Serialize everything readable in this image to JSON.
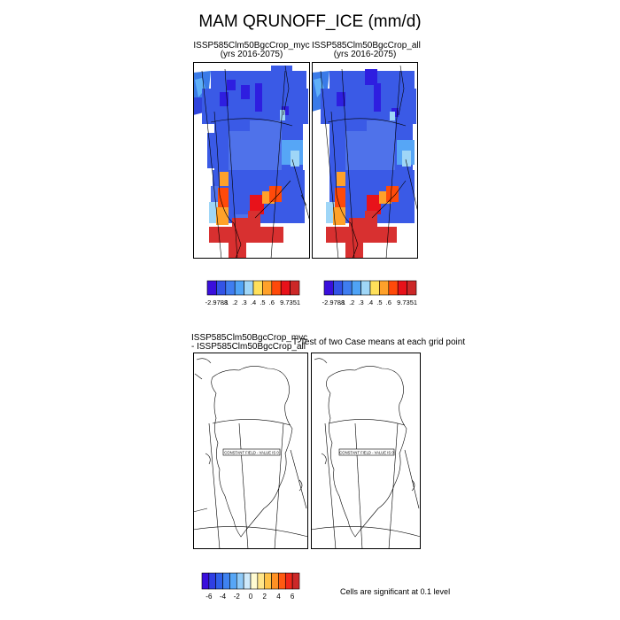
{
  "figure": {
    "title": "MAM QRUNOFF_ICE (mm/d)"
  },
  "panels": {
    "top_left": {
      "case": "ISSP585Clm50BgcCrop_myc",
      "years": "(yrs 2016-2075)"
    },
    "top_right": {
      "case": "ISSP585Clm50BgcCrop_all",
      "years": "(yrs 2016-2075)"
    },
    "bottom_left": {
      "line1": "ISSP585Clm50BgcCrop_myc",
      "line2": "- ISSP585Clm50BgcCrop_all",
      "field_note": "CONSTANT FIELD - VALUE IS 0"
    },
    "bottom_right": {
      "title": "T-Test of two Case means at each grid point",
      "field_note": "CONSTANT FIELD - VALUE IS 0"
    }
  },
  "colorbars": {
    "top": {
      "colors": [
        "#3a0fdc",
        "#3353e6",
        "#3f7df0",
        "#4fa3f6",
        "#9fd6f7",
        "#ffe05a",
        "#ffa12a",
        "#ff4a0a",
        "#e8121a",
        "#cc2828"
      ],
      "labels": [
        "-2.9788",
        ".1",
        ".2",
        ".3",
        ".4",
        ".5",
        ".6",
        "9.7351"
      ]
    },
    "bottom": {
      "colors": [
        "#3a0fdc",
        "#2f3fe4",
        "#3060ea",
        "#3f82f0",
        "#56a6f6",
        "#8fcaf8",
        "#cfeafb",
        "#fffbd2",
        "#ffe58a",
        "#ffc247",
        "#ff9124",
        "#ff5a12",
        "#f0281a",
        "#cc2828"
      ],
      "labels": [
        "-6",
        "-4",
        "-2",
        "0",
        "2",
        "4",
        "6"
      ]
    },
    "note": "Cells are significant at 0.1 level"
  }
}
